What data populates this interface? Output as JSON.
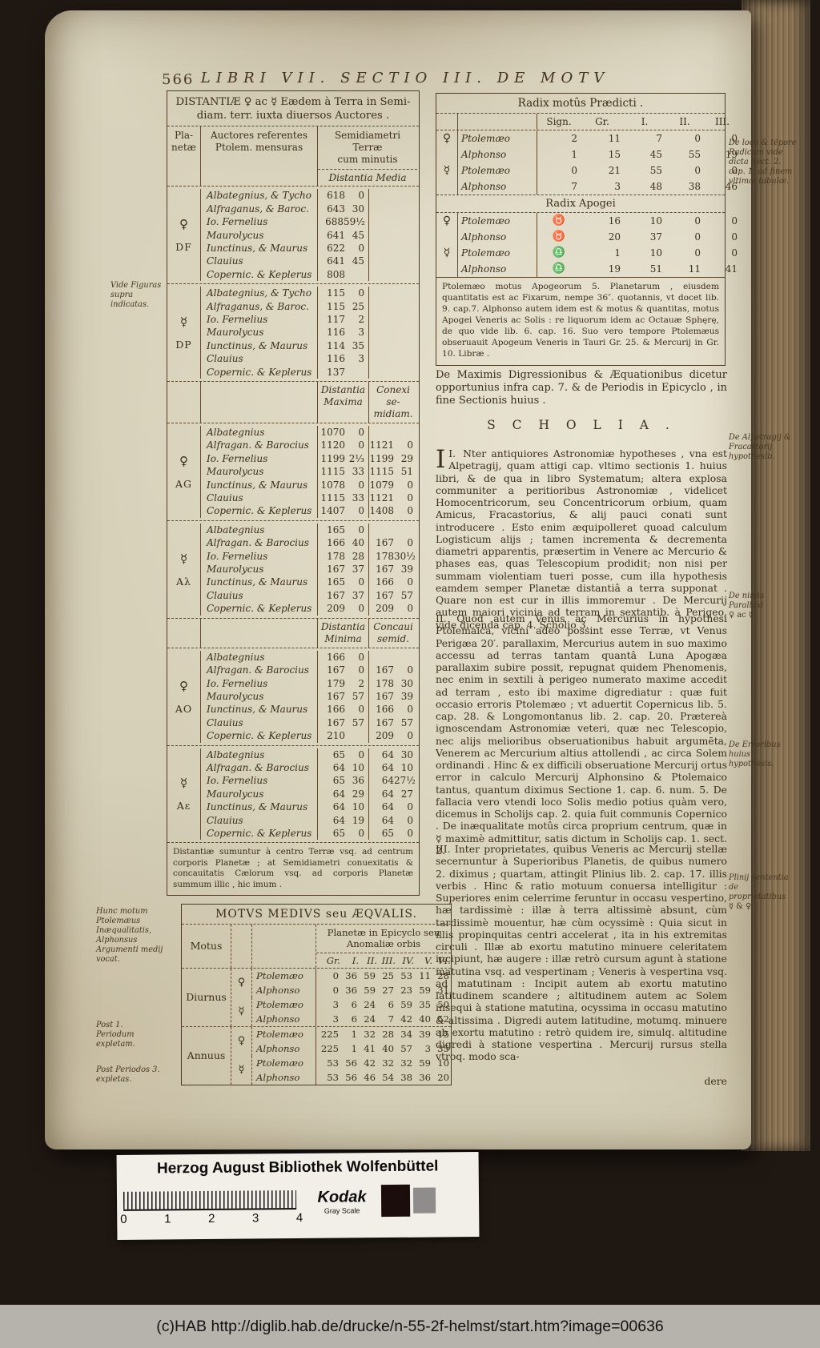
{
  "header": {
    "page_number": "566",
    "title": "LIBRI VII.  SECTIO III.  DE MOTV"
  },
  "left_table": {
    "title_line1": "DISTANTIÆ ♀ ac ☿ Eædem à Terra in Semi-",
    "title_line2": "diam. terr. iuxta diuersos Auctores .",
    "head_planet": [
      "Pla-",
      "netæ"
    ],
    "head_authors": [
      "Auctores referentes",
      "Ptolem. mensuras"
    ],
    "head_semi": [
      "Semidiametri Terræ",
      "cum minutis"
    ],
    "sub_media": "Distantia Media",
    "sub_maxima": [
      "Distantia",
      "Maxima"
    ],
    "sub_conexi": [
      "Conexi se-",
      "midiam."
    ],
    "sub_minima": [
      "Distantia",
      "Minima"
    ],
    "sub_concaui": [
      "Concaui",
      "semid."
    ],
    "blocks": [
      {
        "planet": "♀",
        "code": "DF",
        "rows": [
          [
            "Albategnius, & Tycho",
            "618",
            "0"
          ],
          [
            "Alfraganus, & Baroc.",
            "643",
            "30"
          ],
          [
            "Io. Fernelius",
            "688",
            "59½"
          ],
          [
            "Maurolycus",
            "641",
            "45"
          ],
          [
            "Iunctinus, & Maurus",
            "622",
            "0"
          ],
          [
            "Clauius",
            "641",
            "45"
          ],
          [
            "Copernic. & Keplerus",
            "808",
            ""
          ]
        ]
      },
      {
        "planet": "☿",
        "code": "DP",
        "rows": [
          [
            "Albategnius, & Tycho",
            "115",
            "0"
          ],
          [
            "Alfraganus, & Baroc.",
            "115",
            "25"
          ],
          [
            "Io. Fernelius",
            "117",
            "2"
          ],
          [
            "Maurolycus",
            "116",
            "3"
          ],
          [
            "Iunctinus, & Maurus",
            "114",
            "35"
          ],
          [
            "Clauius",
            "116",
            "3"
          ],
          [
            "Copernic. & Keplerus",
            "137",
            ""
          ]
        ]
      },
      {
        "planet": "♀",
        "code": "AG",
        "rows": [
          [
            "Albategnius",
            "1070",
            "0",
            "",
            ""
          ],
          [
            "Alfragan. & Barocius",
            "1120",
            "0",
            "1121",
            "0"
          ],
          [
            "Io. Fernelius",
            "1199",
            "2⅓",
            "1199",
            "29"
          ],
          [
            "Maurolycus",
            "1115",
            "33",
            "1115",
            "51"
          ],
          [
            "Iunctinus, & Maurus",
            "1078",
            "0",
            "1079",
            "0"
          ],
          [
            "Clauius",
            "1115",
            "33",
            "1121",
            "0"
          ],
          [
            "Copernic. & Keplerus",
            "1407",
            "0",
            "1408",
            "0"
          ]
        ]
      },
      {
        "planet": "☿",
        "code": "Aλ",
        "rows": [
          [
            "Albategnius",
            "165",
            "0",
            "",
            ""
          ],
          [
            "Alfragan. & Barocius",
            "166",
            "40",
            "167",
            "0"
          ],
          [
            "Io. Fernelius",
            "178",
            "28",
            "178",
            "30½"
          ],
          [
            "Maurolycus",
            "167",
            "37",
            "167",
            "39"
          ],
          [
            "Iunctinus, & Maurus",
            "165",
            "0",
            "166",
            "0"
          ],
          [
            "Clauius",
            "167",
            "37",
            "167",
            "57"
          ],
          [
            "Copernic. & Keplerus",
            "209",
            "0",
            "209",
            "0"
          ]
        ]
      },
      {
        "planet": "♀",
        "code": "AO",
        "rows": [
          [
            "Albategnius",
            "166",
            "0",
            "",
            ""
          ],
          [
            "Alfragan. & Barocius",
            "167",
            "0",
            "167",
            "0"
          ],
          [
            "Io. Fernelius",
            "179",
            "2",
            "178",
            "30"
          ],
          [
            "Maurolycus",
            "167",
            "57",
            "167",
            "39"
          ],
          [
            "Iunctinus, & Maurus",
            "166",
            "0",
            "166",
            "0"
          ],
          [
            "Clauius",
            "167",
            "57",
            "167",
            "57"
          ],
          [
            "Copernic. & Keplerus",
            "210",
            "",
            "209",
            "0"
          ]
        ]
      },
      {
        "planet": "☿",
        "code": "Aε",
        "rows": [
          [
            "Albategnius",
            "65",
            "0",
            "64",
            "30"
          ],
          [
            "Alfragan. & Barocius",
            "64",
            "10",
            "64",
            "10"
          ],
          [
            "Io. Fernelius",
            "65",
            "36",
            "64",
            "27½"
          ],
          [
            "Maurolycus",
            "64",
            "29",
            "64",
            "27"
          ],
          [
            "Iunctinus, & Maurus",
            "64",
            "10",
            "64",
            "0"
          ],
          [
            "Clauius",
            "64",
            "19",
            "64",
            "0"
          ],
          [
            "Copernic. & Keplerus",
            "65",
            "0",
            "65",
            "0"
          ]
        ]
      }
    ],
    "footnote": "Distantiæ sumuntur à centro Terræ vsq. ad centrum corporis Planetæ ; at Semidiametri conuexitatis & concauitatis Cælorum vsq. ad corporis Planetæ summum illic , hic imum ."
  },
  "radix": {
    "title": "Radix motûs Prædicti .",
    "cols": [
      "Sign.",
      "Gr.",
      "I.",
      "II.",
      "III."
    ],
    "rows": [
      [
        "♀",
        "Ptolemæo",
        "2",
        "11",
        "7",
        "0",
        "0"
      ],
      [
        "",
        "Alphonso",
        "1",
        "15",
        "45",
        "55",
        "19"
      ],
      [
        "☿",
        "Ptolemæo",
        "0",
        "21",
        "55",
        "0",
        "0"
      ],
      [
        "",
        "Alphonso",
        "7",
        "3",
        "48",
        "38",
        "46"
      ]
    ],
    "apogei_title": "Radix Apogei",
    "apogei_rows": [
      [
        "♀",
        "Ptolemæo",
        "♉",
        "16",
        "10",
        "0",
        "0"
      ],
      [
        "",
        "Alphonso",
        "♉",
        "20",
        "37",
        "0",
        "0"
      ],
      [
        "☿",
        "Ptolemæo",
        "♎",
        "1",
        "10",
        "0",
        "0"
      ],
      [
        "",
        "Alphonso",
        "♎",
        "19",
        "51",
        "11",
        "41"
      ]
    ],
    "note": "Ptolemæo motus Apogeorum 5. Planetarum , eiusdem quantitatis est ac Fixarum, nempe 36″. quotannis, vt docet lib. 9. cap.7. Alphonso autem idem est & motus & quantitas, motus Apogei Veneris ac Solis : re liquorum idem ac Octauæ Sphęrę, de quo vide lib. 6. cap. 16. Suo vero tempore Ptolemæus obseruauit Apogeum Veneris in Tauri Gr. 25. & Mercurij in Gr. 10. Libræ ."
  },
  "scholia": {
    "intro": "De Maximis Digressionibus & Æquationibus dicetur opportunius infra cap. 7. & de Periodis in Epicyclo , in fine Sectionis huius .",
    "heading": "S C H O L I A .",
    "p1_num": "I.",
    "p1_initial": "I",
    "p1_text": "Nter antiquiores Astronomiæ hypotheses , vna est Alpetragij, quam attigi cap. vltimo sectionis 1. huius libri, & de qua in libro Systematum; altera explosa communiter a peritioribus Astronomiæ , videlicet Homocentricorum, seu Concentricorum orbium, quam Amicus, Fracastorius, & alij pauci conati sunt introducere . Esto enim æquipolleret quoad calculum Logisticum alijs ; tamen incrementa & decrementa diametri apparentis, præsertim in Venere ac Mercurio & phases eas, quas Telescopium prodidit; non nisi per summam violentiam tueri posse, cum illa hypothesis eamdem semper Planetæ distantiâ a terra supponat . Quare non est cur in illis immoremur . De Mercurij autem maiori vicinia ad terram in sextantib. à Perigeo, vide dicenda cap. 4. Scholio 3.",
    "p2_text": "II. Quod autem Venus ac Mercurius in hypothesi Ptolemaica, vicini adeo possint esse Terræ, vt Venus Perigæa 20′. parallaxim, Mercurius autem in suo maximo accessu ad terras tantam quantâ Luna Apogæa parallaxim subire possit, repugnat quidem Phenomenis, nec enim in sextili à perigeo numerato maxime accedit ad terram , esto ibi maxime digrediatur : quæ fuit occasio erroris Ptolemæo ; vt aduertit Copernicus lib. 5. cap. 28. & Longomontanus lib. 2. cap. 20. Prætereà ignoscendam Astronomiæ veteri, quæ nec Telescopio, nec alijs melioribus obseruationibus habuit argumēta, Venerem ac Mercurium altius attollendi , ac circa Solem ordinandi . Hinc & ex difficili obseruatione Mercurij ortus error in calculo Mercurij Alphonsino & Ptolemaico tantus, quantum diximus Sectione 1. cap. 6. num. 5. De fallacia vero vtendi loco Solis medio potius quàm vero, dicemus in Scholijs cap. 2. quia fuit communis Copernico . De inæqualitate motûs circa proprium centrum, quæ in ☿ maximè admittitur, satis dictum in Scholijs cap. 1. sect. 2.",
    "p3_text": "III. Inter proprietates, quibus Veneris ac Mercurij stellæ secernuntur à Superioribus Planetis, de quibus numero 2. diximus ; quartam, attingit Plinius lib. 2. cap. 17. illis verbis . Hinc & ratio motuum conuersa intelligitur : Superiores enim celerrime feruntur in occasu vespertino, hæ tardissimè : illæ à terra altissimè absunt, cùm tardissimè mouentur, hæ cùm ocyssimè : Quia sicut in illis propinquitas centri accelerat , ita in his extremitas circuli . Illæ ab exortu matutino minuere celeritatem incipiunt, hæ augere : illæ retrò cursum agunt à statione matutina vsq. ad vespertinam ; Veneris à vespertina vsq. ad matutinam : Incipit autem ab exortu matutino latitudinem scandere ; altitudinem autem ac Solem insequi à statione matutina, ocyssima in occasu matutino & altissima . Digredi autem latitudine, motumq. minuere ab exortu matutino : retrò quidem ire, simulq. altitudine digredi à statione vespertina . Mercurij rursus stella vtroq. modo sca-",
    "catchword": "dere"
  },
  "margins": {
    "left_top": "Vide Figuras supra indicatas.",
    "left_mid": "Hunc motum Ptolemæus Inæqualitatis, Alphonsus Argumenti medij vocat.",
    "left_post1": "Post 1. Periodum expletam.",
    "left_post2": "Post Periodos 3. expletas.",
    "right_1": "De loco & tēpore Radicum vide dicta Sect. 2. cap. 1. ad finem vltimæ tabulæ.",
    "right_2": "De Alpetragij & Fracastorij hypothesib.",
    "right_3": "De nimia Parallaxi",
    "right_3b": "♀ ac ☿.",
    "right_4": "De Erroribus huius hypothesis.",
    "right_5": "Plinij sententia de proprietatibus",
    "right_5b": "☿ & ♀."
  },
  "motus": {
    "title": "MOTVS MEDIVS seu ÆQVALIS.",
    "col_motus": "Motus",
    "group_head1": "Planetæ in Epicyclo seu",
    "group_head2": "Anomaliæ orbis",
    "cols": [
      "Gr.",
      "I.",
      "II.",
      "III.",
      "IV.",
      "V.",
      "VI."
    ],
    "groups": [
      {
        "label": "Diurnus",
        "rows": [
          [
            "♀",
            "Ptolemæo",
            "0",
            "36",
            "59",
            "25",
            "53",
            "11",
            "28"
          ],
          [
            "",
            "Alphonso",
            "0",
            "36",
            "59",
            "27",
            "23",
            "59",
            "31"
          ],
          [
            "☿",
            "Ptolemæo",
            "3",
            "6",
            "24",
            "6",
            "59",
            "35",
            "50"
          ],
          [
            "",
            "Alphonso",
            "3",
            "6",
            "24",
            "7",
            "42",
            "40",
            "52"
          ]
        ]
      },
      {
        "label": "Annuus",
        "rows": [
          [
            "♀",
            "Ptolemæo",
            "225",
            "1",
            "32",
            "28",
            "34",
            "39",
            "15"
          ],
          [
            "",
            "Alphonso",
            "225",
            "1",
            "41",
            "40",
            "57",
            "3",
            "35"
          ],
          [
            "☿",
            "Ptolemæo",
            "53",
            "56",
            "42",
            "32",
            "32",
            "59",
            "10"
          ],
          [
            "",
            "Alphonso",
            "53",
            "56",
            "46",
            "54",
            "38",
            "36",
            "20"
          ]
        ]
      }
    ]
  },
  "kodak": {
    "title": "Herzog August Bibliothek Wolfenbüttel",
    "brand": "Kodak",
    "sub": "Gray Scale",
    "ticks": [
      "0",
      "1",
      "2",
      "3",
      "4"
    ]
  },
  "footer": {
    "text": "(c)HAB http://diglib.hab.de/drucke/n-55-2f-helmst/start.htm?image=00636"
  }
}
